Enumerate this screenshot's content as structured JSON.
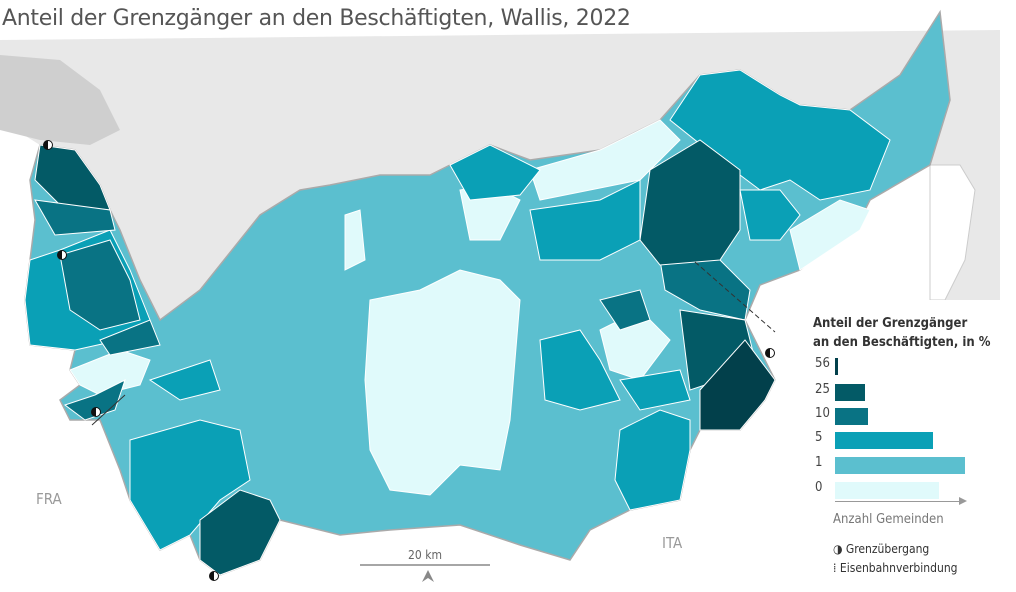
{
  "title": "Anteil der Grenzgänger an den Beschäftigten, Wallis, 2022",
  "countries": {
    "fra": "FRA",
    "ita": "ITA"
  },
  "scale": {
    "label": "20 km"
  },
  "legend": {
    "title_line1": "Anteil der Grenzgänger",
    "title_line2": "an den Beschäftigten, in %",
    "classes": [
      {
        "label": "56",
        "color": "#02404b",
        "relative_count": 0.02
      },
      {
        "label": "25",
        "color": "#035a66",
        "relative_count": 0.23
      },
      {
        "label": "10",
        "color": "#097384",
        "relative_count": 0.25
      },
      {
        "label": "5",
        "color": "#0aa0b6",
        "relative_count": 0.75
      },
      {
        "label": "1",
        "color": "#5bbfcf",
        "relative_count": 1.0
      },
      {
        "label": "0",
        "color": "#e0fafb",
        "relative_count": 0.8
      }
    ],
    "axis_label": "Anzahl Gemeinden",
    "symbols": {
      "border_crossing": "Grenzübergang",
      "railway": "Eisenbahnverbindung"
    }
  },
  "icons": [
    "half-filled-circle-icon",
    "dashed-line-icon",
    "north-arrow-icon"
  ]
}
